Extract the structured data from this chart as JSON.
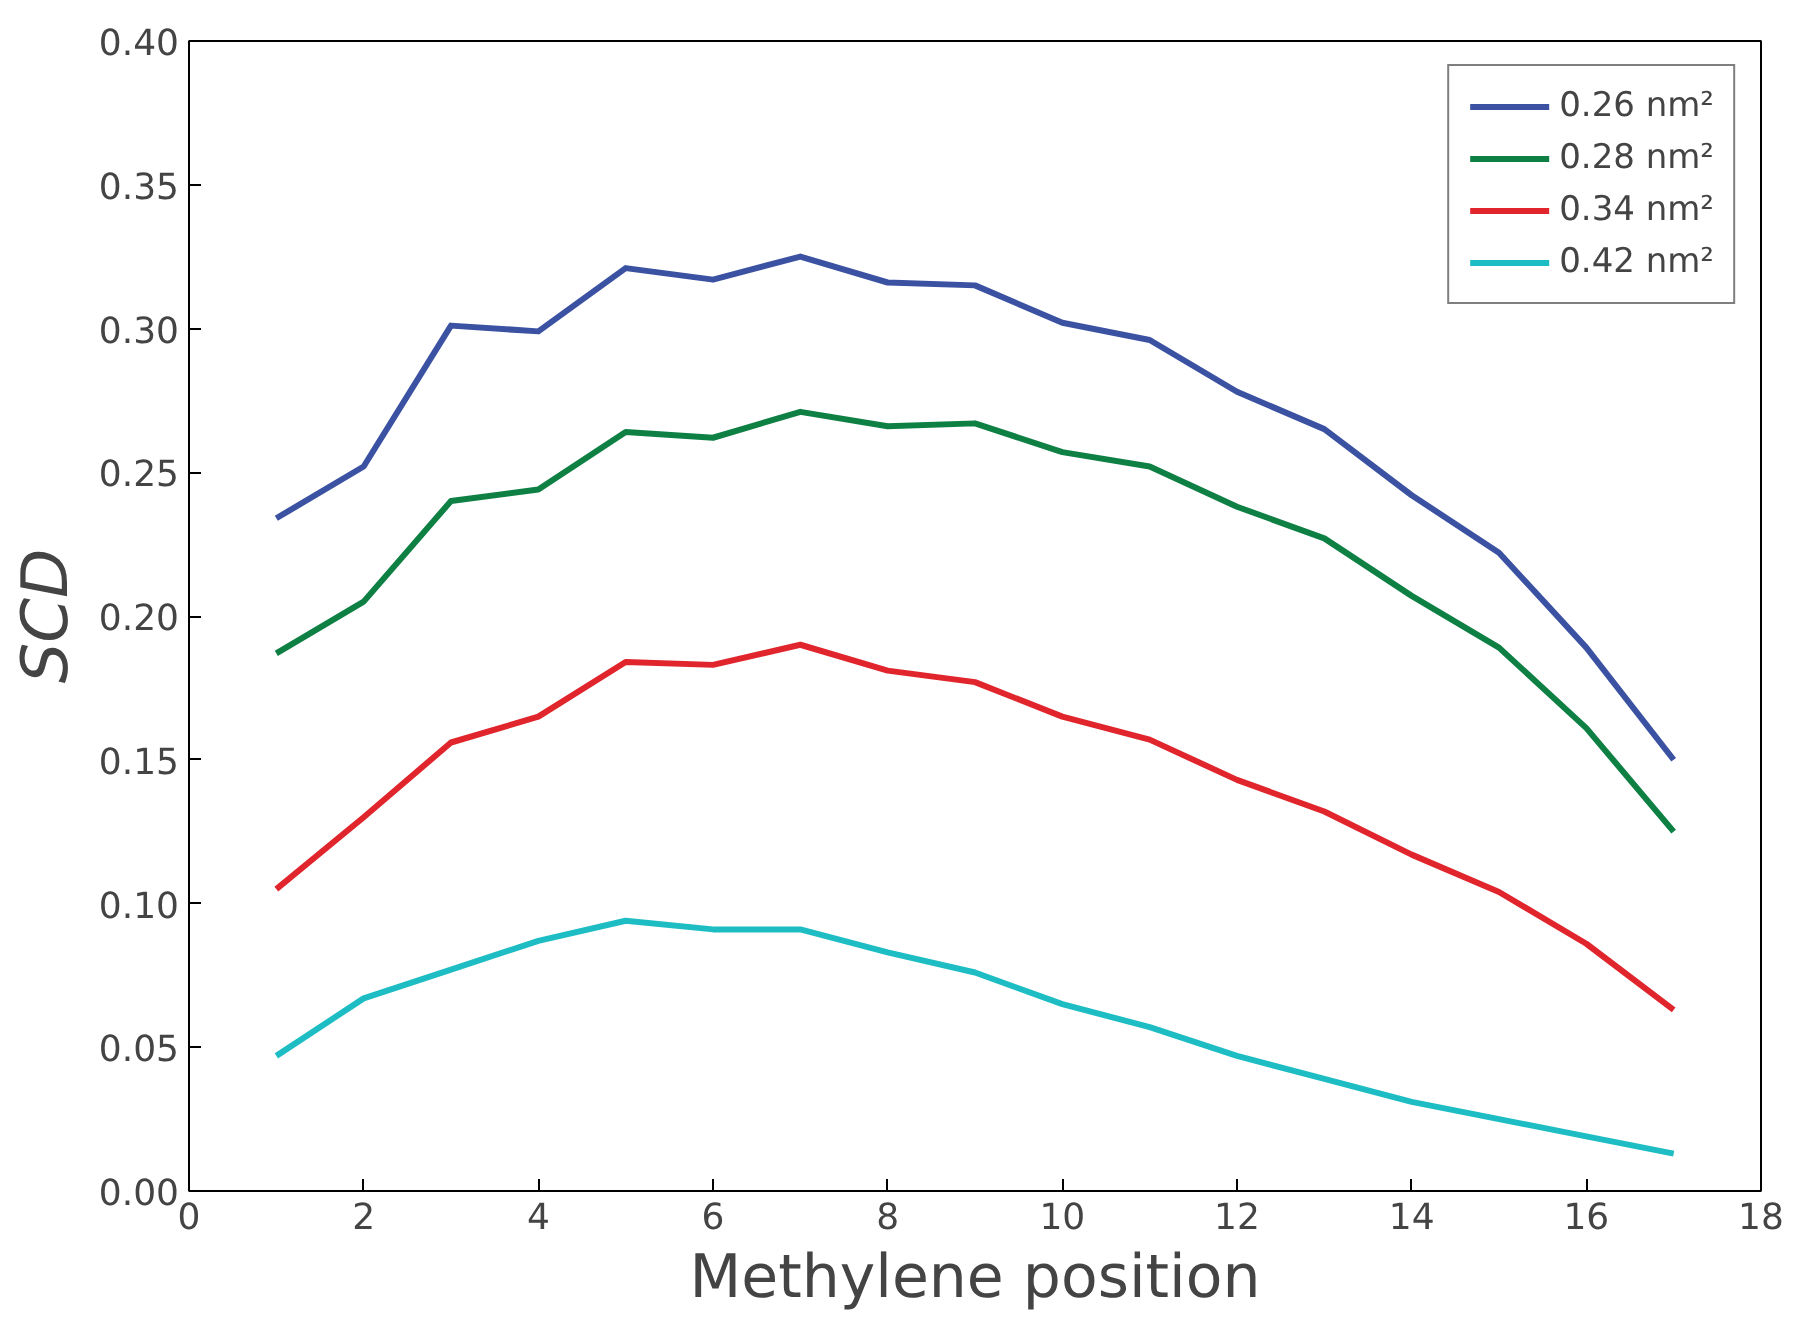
{
  "chart_data": {
    "type": "line",
    "xlabel": "Methylene position",
    "ylabel": "SCD",
    "x": [
      1,
      2,
      3,
      4,
      5,
      6,
      7,
      8,
      9,
      10,
      11,
      12,
      13,
      14,
      15,
      16,
      17
    ],
    "xlim": [
      0,
      18
    ],
    "xticks": [
      0,
      2,
      4,
      6,
      8,
      10,
      12,
      14,
      16,
      18
    ],
    "ylim": [
      0,
      0.4
    ],
    "yticks": [
      {
        "value": 0,
        "label": "0.00"
      },
      {
        "value": 0.05,
        "label": "0.05"
      },
      {
        "value": 0.1,
        "label": "0.10"
      },
      {
        "value": 0.15,
        "label": "0.15"
      },
      {
        "value": 0.2,
        "label": "0.20"
      },
      {
        "value": 0.25,
        "label": "0.25"
      },
      {
        "value": 0.3,
        "label": "0.30"
      },
      {
        "value": 0.35,
        "label": "0.35"
      },
      {
        "value": 0.4,
        "label": "0.40"
      }
    ],
    "grid": false,
    "legend": "top right",
    "line_style": "solid",
    "marker": "none",
    "series": [
      {
        "name": "0.26 nm²",
        "color": "#3b52a3",
        "values": [
          0.234,
          0.252,
          0.301,
          0.299,
          0.321,
          0.317,
          0.325,
          0.316,
          0.315,
          0.302,
          0.296,
          0.278,
          0.265,
          0.242,
          0.222,
          0.189,
          0.15
        ]
      },
      {
        "name": "0.28 nm²",
        "color": "#0e8044",
        "values": [
          0.187,
          0.205,
          0.24,
          0.244,
          0.264,
          0.262,
          0.271,
          0.266,
          0.267,
          0.257,
          0.252,
          0.238,
          0.227,
          0.207,
          0.189,
          0.161,
          0.125
        ]
      },
      {
        "name": "0.34 nm²",
        "color": "#e0262c",
        "values": [
          0.105,
          0.13,
          0.156,
          0.165,
          0.184,
          0.183,
          0.19,
          0.181,
          0.177,
          0.165,
          0.157,
          0.143,
          0.132,
          0.117,
          0.104,
          0.086,
          0.063
        ]
      },
      {
        "name": "0.42 nm²",
        "color": "#1ebdc4",
        "values": [
          0.047,
          0.067,
          0.077,
          0.087,
          0.094,
          0.091,
          0.091,
          0.083,
          0.076,
          0.065,
          0.057,
          0.047,
          0.039,
          0.031,
          0.025,
          0.019,
          0.013
        ]
      }
    ]
  }
}
